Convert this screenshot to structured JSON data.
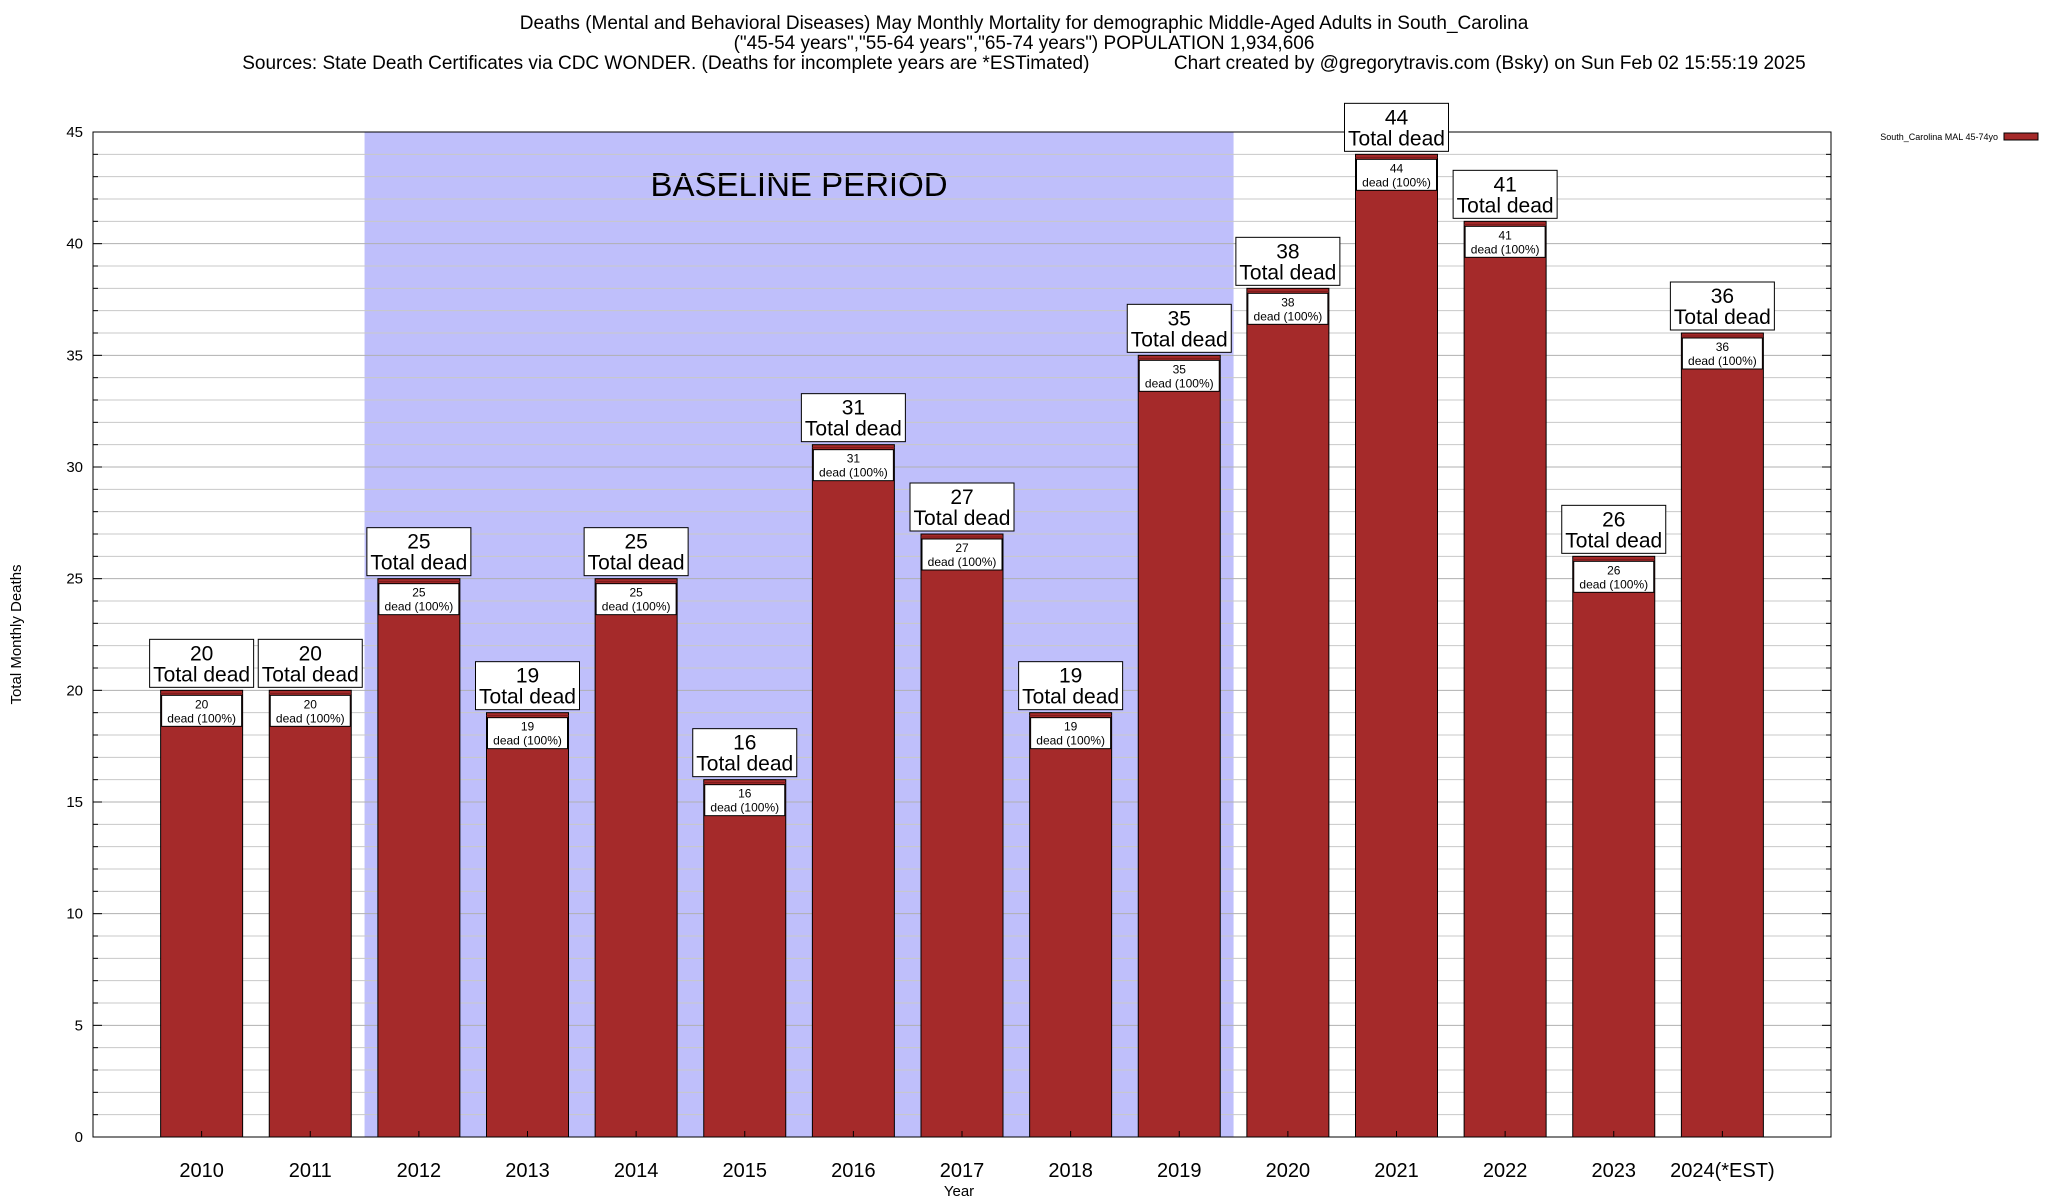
{
  "chart_data": {
    "type": "bar",
    "title": "Deaths (Mental and Behavioral Diseases) May Monthly Mortality for demographic Middle-Aged Adults in South_Carolina",
    "subtitle": "(\"45-54 years\",\"55-64 years\",\"65-74 years\") POPULATION 1,934,606",
    "sources_line": "Sources: State Death Certificates via CDC WONDER. (Deaths for incomplete years are *ESTimated)",
    "credit_line": "Chart created by @gregorytravis.com (Bsky) on Sun Feb 02 15:55:19 2025",
    "xlabel": "Year",
    "ylabel": "Total Monthly Deaths",
    "categories": [
      "2010",
      "2011",
      "2012",
      "2013",
      "2014",
      "2015",
      "2016",
      "2017",
      "2018",
      "2019",
      "2020",
      "2021",
      "2022",
      "2023",
      "2024(*EST)"
    ],
    "series": [
      {
        "name": "South_Carolina MAL 45-74yo",
        "values": [
          20,
          20,
          25,
          19,
          25,
          16,
          31,
          27,
          19,
          35,
          38,
          44,
          41,
          26,
          36
        ]
      }
    ],
    "total_label_text": "Total dead",
    "segment_label_text": "dead (100%)",
    "ylim": [
      0,
      45
    ],
    "yticks": [
      0,
      5,
      10,
      15,
      20,
      25,
      30,
      35,
      40,
      45
    ],
    "y_minor_step": 1,
    "grid": true,
    "legend_position": "top-right",
    "annotation": {
      "text": "BASELINE PERIOD",
      "from": "2012",
      "to": "2019"
    },
    "colors": {
      "bar": "#a52a2a",
      "bar_top": "#7a1a1a",
      "baseline_band": "#bfbffb",
      "grid": "#c8c8c8"
    }
  }
}
